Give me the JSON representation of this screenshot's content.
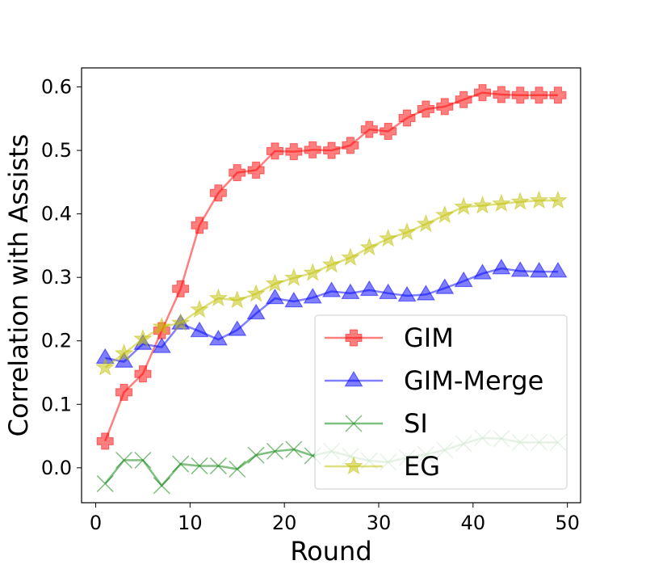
{
  "chart_data": {
    "type": "line",
    "title": "",
    "xlabel": "Round",
    "ylabel": "Correlation with Assists",
    "xlim": [
      -1.5,
      51.4
    ],
    "ylim": [
      -0.055,
      0.63
    ],
    "xticks": [
      0,
      10,
      20,
      30,
      40,
      50
    ],
    "yticks": [
      0.0,
      0.1,
      0.2,
      0.3,
      0.4,
      0.5,
      0.6
    ],
    "xtick_labels": [
      "0",
      "10",
      "20",
      "30",
      "40",
      "50"
    ],
    "ytick_labels": [
      "0.0",
      "0.1",
      "0.2",
      "0.3",
      "0.4",
      "0.5",
      "0.6"
    ],
    "grid": false,
    "legend_position": "lower-right",
    "x": [
      1,
      3,
      5,
      7,
      9,
      11,
      13,
      15,
      17,
      19,
      21,
      23,
      25,
      27,
      29,
      31,
      33,
      35,
      37,
      39,
      41,
      43,
      45,
      47,
      49
    ],
    "series": [
      {
        "name": "GIM",
        "color": "#ff0000",
        "marker": "plus",
        "values": [
          0.042,
          0.119,
          0.148,
          0.216,
          0.282,
          0.382,
          0.433,
          0.465,
          0.469,
          0.499,
          0.498,
          0.501,
          0.5,
          0.508,
          0.533,
          0.53,
          0.551,
          0.565,
          0.569,
          0.58,
          0.591,
          0.588,
          0.587,
          0.587,
          0.587
        ]
      },
      {
        "name": "GIM-Merge",
        "color": "#0000ff",
        "marker": "triangle",
        "values": [
          0.173,
          0.167,
          0.195,
          0.19,
          0.227,
          0.215,
          0.202,
          0.217,
          0.243,
          0.267,
          0.262,
          0.268,
          0.278,
          0.275,
          0.28,
          0.275,
          0.271,
          0.273,
          0.283,
          0.294,
          0.306,
          0.314,
          0.31,
          0.309,
          0.309
        ]
      },
      {
        "name": "SI",
        "color": "#008000",
        "marker": "x",
        "values": [
          -0.025,
          0.012,
          0.012,
          -0.028,
          0.006,
          0.003,
          0.003,
          -0.002,
          0.02,
          0.026,
          0.029,
          0.019,
          0.026,
          0.018,
          0.011,
          0.009,
          0.016,
          0.021,
          0.028,
          0.038,
          0.047,
          0.046,
          0.04,
          0.04,
          0.04
        ]
      },
      {
        "name": "EG",
        "color": "#bfbf00",
        "marker": "star",
        "values": [
          0.158,
          0.18,
          0.203,
          0.222,
          0.228,
          0.249,
          0.267,
          0.264,
          0.274,
          0.29,
          0.299,
          0.307,
          0.32,
          0.331,
          0.347,
          0.361,
          0.371,
          0.384,
          0.398,
          0.411,
          0.413,
          0.416,
          0.419,
          0.421,
          0.421
        ]
      }
    ]
  }
}
